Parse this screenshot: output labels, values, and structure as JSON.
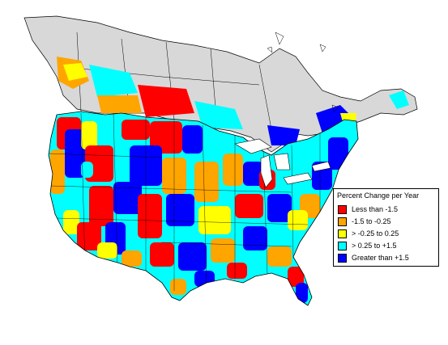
{
  "legend": {
    "title": "Percent Change per Year",
    "items": [
      {
        "label": "Less than -1.5",
        "color": "#ff0000"
      },
      {
        "label": "-1.5 to -0.25",
        "color": "#ffa500"
      },
      {
        "label": "> -0.25 to 0.25",
        "color": "#ffff00"
      },
      {
        "label": "> 0.25 to +1.5",
        "color": "#00ffff"
      },
      {
        "label": "Greater than +1.5",
        "color": "#0000ff"
      }
    ]
  },
  "colors": {
    "no_data_region": "#d8d8d8",
    "background": "#ffffff",
    "boundary": "#000000"
  }
}
